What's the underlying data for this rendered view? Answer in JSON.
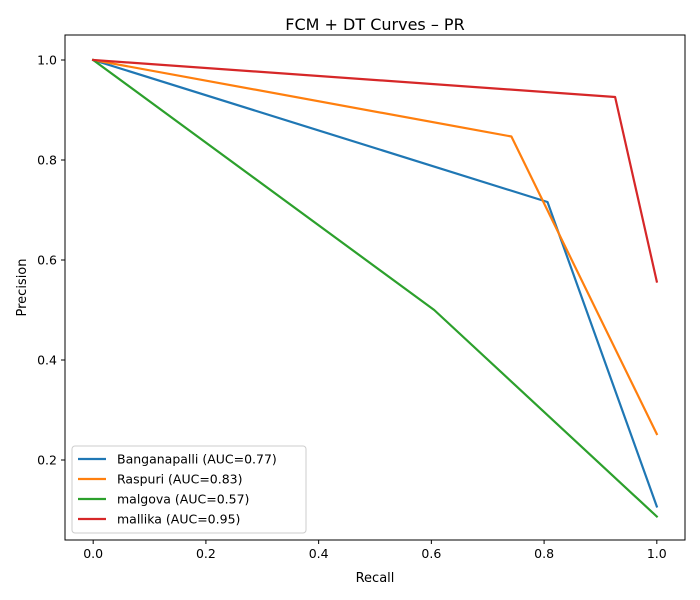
{
  "chart_data": {
    "type": "line",
    "title": "FCM + DT Curves – PR",
    "xlabel": "Recall",
    "ylabel": "Precision",
    "xlim": [
      -0.05,
      1.05
    ],
    "ylim": [
      0.04,
      1.05
    ],
    "xticks": [
      0.0,
      0.2,
      0.4,
      0.6,
      0.8,
      1.0
    ],
    "xtick_labels": [
      "0.0",
      "0.2",
      "0.4",
      "0.6",
      "0.8",
      "1.0"
    ],
    "yticks": [
      0.2,
      0.4,
      0.6,
      0.8,
      1.0
    ],
    "ytick_labels": [
      "0.2",
      "0.4",
      "0.6",
      "0.8",
      "1.0"
    ],
    "grid": false,
    "legend_position": "lower-left",
    "series": [
      {
        "name": "Banganapalli (AUC=0.77)",
        "color": "#1f77b4",
        "x": [
          0.0,
          0.806,
          1.0
        ],
        "y": [
          1.0,
          0.716,
          0.107
        ]
      },
      {
        "name": "Raspuri (AUC=0.83)",
        "color": "#ff7f0e",
        "x": [
          0.0,
          0.742,
          1.0
        ],
        "y": [
          1.0,
          0.847,
          0.252
        ]
      },
      {
        "name": "malgova (AUC=0.57)",
        "color": "#2ca02c",
        "x": [
          0.0,
          0.605,
          1.0
        ],
        "y": [
          1.0,
          0.5,
          0.087
        ]
      },
      {
        "name": "mallika (AUC=0.95)",
        "color": "#d62728",
        "x": [
          0.0,
          0.926,
          1.0
        ],
        "y": [
          1.0,
          0.926,
          0.557
        ]
      }
    ]
  }
}
